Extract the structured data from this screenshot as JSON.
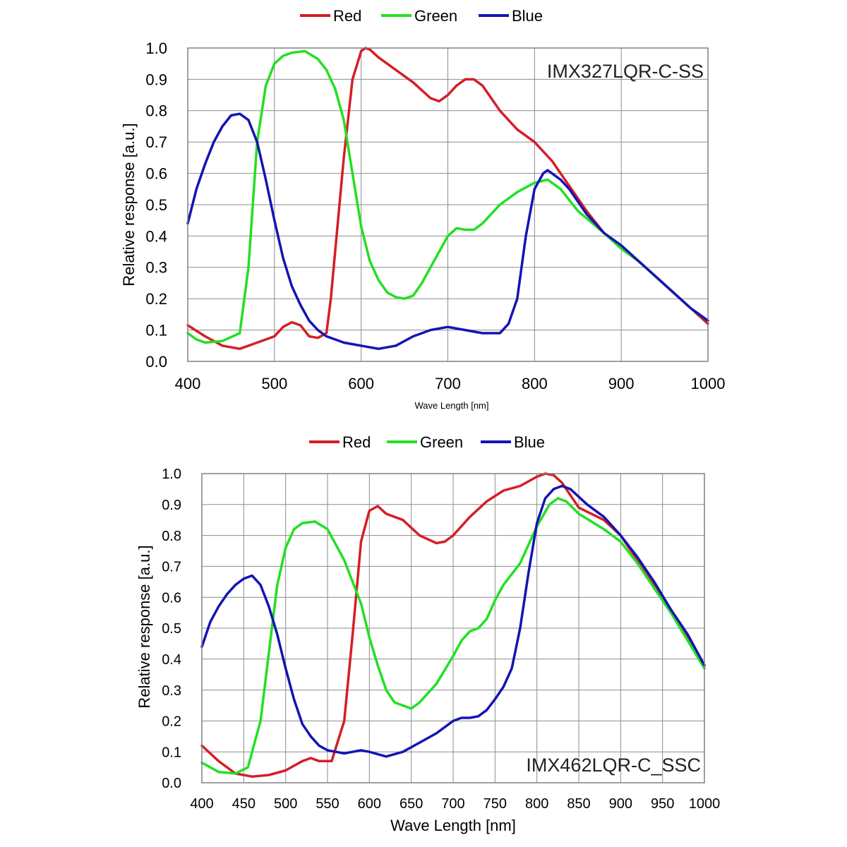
{
  "chart_data": [
    {
      "type": "line",
      "title": "IMX327LQR-C-SS",
      "xlabel": "Wave Length [nm]",
      "ylabel": "Relative response [a.u.]",
      "xlim": [
        400,
        1000
      ],
      "ylim": [
        0,
        1.0
      ],
      "xticks": [
        400,
        500,
        600,
        700,
        800,
        900,
        1000
      ],
      "yticks": [
        0.0,
        0.1,
        0.2,
        0.3,
        0.4,
        0.5,
        0.6,
        0.7,
        0.8,
        0.9,
        1.0
      ],
      "ytick_labels": [
        "0.0",
        "0.1",
        "0.2",
        "0.3",
        "0.4",
        "0.5",
        "0.6",
        "0.7",
        "0.8",
        "0.9",
        "1.0"
      ],
      "legend": {
        "position": "top-center"
      },
      "grid": true,
      "series": [
        {
          "name": "Red",
          "color": "#d41f26",
          "x": [
            400,
            420,
            440,
            460,
            480,
            500,
            510,
            520,
            530,
            540,
            550,
            560,
            565,
            570,
            580,
            590,
            600,
            605,
            610,
            620,
            640,
            660,
            680,
            690,
            700,
            710,
            720,
            730,
            740,
            760,
            780,
            800,
            820,
            840,
            860,
            880,
            900,
            920,
            940,
            960,
            980,
            1000
          ],
          "y": [
            0.115,
            0.08,
            0.05,
            0.04,
            0.06,
            0.08,
            0.11,
            0.125,
            0.115,
            0.08,
            0.075,
            0.09,
            0.2,
            0.35,
            0.65,
            0.9,
            0.99,
            1.0,
            0.995,
            0.97,
            0.93,
            0.89,
            0.84,
            0.83,
            0.85,
            0.88,
            0.9,
            0.9,
            0.88,
            0.8,
            0.74,
            0.7,
            0.64,
            0.56,
            0.48,
            0.41,
            0.36,
            0.32,
            0.27,
            0.22,
            0.17,
            0.12
          ]
        },
        {
          "name": "Green",
          "color": "#22e022",
          "x": [
            400,
            410,
            420,
            440,
            460,
            470,
            480,
            490,
            500,
            510,
            520,
            535,
            550,
            560,
            570,
            580,
            590,
            600,
            610,
            620,
            630,
            640,
            650,
            660,
            670,
            680,
            690,
            700,
            710,
            720,
            730,
            740,
            760,
            780,
            800,
            815,
            830,
            850,
            880,
            900,
            920,
            940,
            960,
            980,
            1000
          ],
          "y": [
            0.09,
            0.07,
            0.06,
            0.065,
            0.09,
            0.3,
            0.7,
            0.88,
            0.95,
            0.975,
            0.985,
            0.99,
            0.965,
            0.93,
            0.87,
            0.77,
            0.6,
            0.43,
            0.32,
            0.26,
            0.22,
            0.205,
            0.2,
            0.21,
            0.25,
            0.3,
            0.35,
            0.4,
            0.425,
            0.42,
            0.42,
            0.44,
            0.5,
            0.54,
            0.57,
            0.58,
            0.55,
            0.48,
            0.41,
            0.36,
            0.32,
            0.27,
            0.22,
            0.17,
            0.13
          ]
        },
        {
          "name": "Blue",
          "color": "#1414b4",
          "x": [
            400,
            410,
            420,
            430,
            440,
            450,
            460,
            470,
            480,
            490,
            500,
            510,
            520,
            530,
            540,
            550,
            560,
            570,
            580,
            590,
            600,
            620,
            640,
            660,
            680,
            700,
            720,
            740,
            760,
            770,
            780,
            790,
            800,
            810,
            815,
            820,
            830,
            840,
            860,
            880,
            900,
            920,
            940,
            960,
            980,
            1000
          ],
          "y": [
            0.44,
            0.55,
            0.63,
            0.7,
            0.75,
            0.785,
            0.79,
            0.77,
            0.7,
            0.58,
            0.45,
            0.33,
            0.24,
            0.18,
            0.13,
            0.1,
            0.08,
            0.07,
            0.06,
            0.055,
            0.05,
            0.04,
            0.05,
            0.08,
            0.1,
            0.11,
            0.1,
            0.09,
            0.09,
            0.12,
            0.2,
            0.4,
            0.55,
            0.6,
            0.61,
            0.6,
            0.58,
            0.55,
            0.47,
            0.41,
            0.37,
            0.32,
            0.27,
            0.22,
            0.17,
            0.13
          ]
        }
      ]
    },
    {
      "type": "line",
      "title": "IMX462LQR-C_SSC",
      "xlabel": "Wave Length [nm]",
      "ylabel": "Relative response [a.u.]",
      "xlim": [
        400,
        1000
      ],
      "ylim": [
        0,
        1.0
      ],
      "xticks": [
        400,
        450,
        500,
        550,
        600,
        650,
        700,
        750,
        800,
        850,
        900,
        950,
        1000
      ],
      "yticks": [
        0.0,
        0.1,
        0.2,
        0.3,
        0.4,
        0.5,
        0.6,
        0.7,
        0.8,
        0.9,
        1.0
      ],
      "ytick_labels": [
        "0.0",
        "0.1",
        "0.2",
        "0.3",
        "0.4",
        "0.5",
        "0.6",
        "0.7",
        "0.8",
        "0.9",
        "1.0"
      ],
      "legend": {
        "position": "top-center"
      },
      "grid": true,
      "series": [
        {
          "name": "Red",
          "color": "#d41f26",
          "x": [
            400,
            420,
            440,
            460,
            480,
            500,
            520,
            530,
            540,
            555,
            570,
            580,
            590,
            600,
            610,
            620,
            640,
            660,
            680,
            690,
            700,
            720,
            740,
            760,
            780,
            800,
            810,
            820,
            830,
            850,
            880,
            900,
            920,
            940,
            960,
            980,
            1000
          ],
          "y": [
            0.12,
            0.07,
            0.03,
            0.02,
            0.025,
            0.04,
            0.07,
            0.08,
            0.07,
            0.07,
            0.2,
            0.48,
            0.78,
            0.88,
            0.895,
            0.87,
            0.85,
            0.8,
            0.775,
            0.78,
            0.8,
            0.86,
            0.91,
            0.945,
            0.96,
            0.99,
            1.0,
            0.995,
            0.97,
            0.89,
            0.85,
            0.8,
            0.72,
            0.64,
            0.56,
            0.47,
            0.38
          ]
        },
        {
          "name": "Green",
          "color": "#22e022",
          "x": [
            400,
            420,
            440,
            455,
            460,
            470,
            480,
            490,
            500,
            510,
            520,
            535,
            550,
            570,
            590,
            600,
            610,
            620,
            630,
            640,
            650,
            660,
            680,
            700,
            710,
            720,
            730,
            740,
            750,
            760,
            780,
            800,
            815,
            825,
            835,
            850,
            880,
            900,
            920,
            940,
            960,
            980,
            1000
          ],
          "y": [
            0.065,
            0.035,
            0.03,
            0.05,
            0.1,
            0.2,
            0.42,
            0.64,
            0.76,
            0.82,
            0.84,
            0.845,
            0.82,
            0.72,
            0.58,
            0.47,
            0.38,
            0.3,
            0.26,
            0.25,
            0.24,
            0.26,
            0.32,
            0.41,
            0.46,
            0.49,
            0.5,
            0.53,
            0.59,
            0.64,
            0.71,
            0.83,
            0.9,
            0.92,
            0.91,
            0.87,
            0.82,
            0.78,
            0.71,
            0.63,
            0.55,
            0.46,
            0.37
          ]
        },
        {
          "name": "Blue",
          "color": "#1414b4",
          "x": [
            400,
            410,
            420,
            430,
            440,
            450,
            460,
            470,
            480,
            490,
            500,
            510,
            520,
            530,
            540,
            550,
            560,
            570,
            580,
            590,
            600,
            620,
            640,
            660,
            680,
            700,
            710,
            720,
            730,
            740,
            750,
            760,
            770,
            780,
            790,
            800,
            810,
            820,
            830,
            840,
            860,
            880,
            900,
            920,
            940,
            960,
            980,
            1000
          ],
          "y": [
            0.44,
            0.52,
            0.57,
            0.61,
            0.64,
            0.66,
            0.67,
            0.64,
            0.57,
            0.48,
            0.37,
            0.27,
            0.19,
            0.15,
            0.12,
            0.105,
            0.1,
            0.095,
            0.1,
            0.105,
            0.1,
            0.085,
            0.1,
            0.13,
            0.16,
            0.2,
            0.21,
            0.21,
            0.215,
            0.235,
            0.27,
            0.31,
            0.37,
            0.5,
            0.68,
            0.84,
            0.92,
            0.95,
            0.96,
            0.95,
            0.9,
            0.86,
            0.8,
            0.73,
            0.65,
            0.56,
            0.48,
            0.38
          ]
        }
      ]
    }
  ]
}
